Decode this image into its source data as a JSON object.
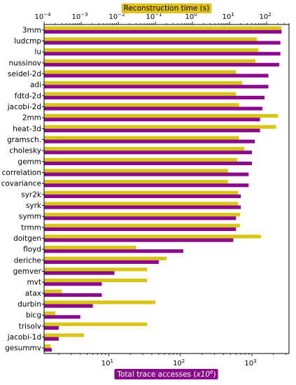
{
  "chart_data": {
    "type": "bar",
    "orientation": "horizontal",
    "categories": [
      "3mm",
      "ludcmp",
      "lu",
      "nussinov",
      "seidel-2d",
      "adi",
      "fdtd-2d",
      "jacobi-2d",
      "2mm",
      "heat-3d",
      "gramsch.",
      "cholesky",
      "gemm",
      "correlation",
      "covariance",
      "syr2k",
      "syrk",
      "symm",
      "trmm",
      "doitgen",
      "floyd",
      "deriche",
      "gemver",
      "mvt",
      "atax",
      "durbin",
      "bicg",
      "trisolv",
      "jacobi-1d",
      "gesummv"
    ],
    "top_axis": {
      "label": "Reconstruction time (s)",
      "scale": "log",
      "range": [
        0.0001,
        400
      ],
      "ticks": [
        {
          "value": 0.0001,
          "base": "10",
          "exp": "−4"
        },
        {
          "value": 0.001,
          "base": "10",
          "exp": "−3"
        },
        {
          "value": 0.01,
          "base": "10",
          "exp": "−2"
        },
        {
          "value": 0.1,
          "base": "10",
          "exp": "−1"
        },
        {
          "value": 1,
          "base": "10",
          "exp": "0"
        },
        {
          "value": 10,
          "base": "10",
          "exp": "1"
        },
        {
          "value": 100,
          "base": "10",
          "exp": "2"
        }
      ],
      "color": "#e0c21a"
    },
    "bottom_axis": {
      "label_prefix": "Total trace accesses (",
      "label_unit_base": "x10",
      "label_unit_exp": "6",
      "label_suffix": ")",
      "scale": "log",
      "range": [
        1.25,
        3300
      ],
      "ticks": [
        {
          "value": 10,
          "base": "10",
          "exp": "1"
        },
        {
          "value": 100,
          "base": "10",
          "exp": "2"
        },
        {
          "value": 1000,
          "base": "10",
          "exp": "3"
        }
      ],
      "color": "#8b0a8b"
    },
    "series": [
      {
        "axis": "top",
        "color": "#d9c418",
        "values": [
          250,
          55,
          60,
          50,
          15,
          22,
          15,
          18,
          200,
          180,
          18,
          25,
          16,
          9,
          9,
          17,
          17,
          19,
          19,
          70,
          0.03,
          0.2,
          0.06,
          0.06,
          0.0003,
          0.1,
          0.0002,
          0.06,
          0.0012,
          0.00015
        ]
      },
      {
        "axis": "bottom",
        "color": "#8b0a8b",
        "values": [
          2600,
          2500,
          2500,
          2400,
          1700,
          1700,
          1500,
          1400,
          1300,
          1300,
          1100,
          1000,
          1000,
          900,
          900,
          700,
          700,
          600,
          600,
          550,
          110,
          50,
          12,
          8,
          8,
          6,
          4,
          2,
          2,
          1.6
        ]
      }
    ]
  }
}
